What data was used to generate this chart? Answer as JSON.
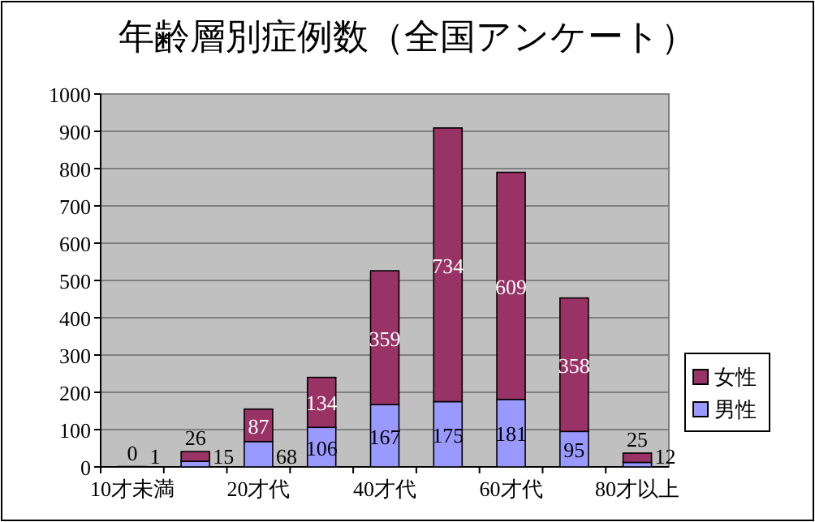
{
  "chart_data": {
    "type": "bar",
    "title": "年齢層別症例数（全国アンケート）",
    "categories": [
      "10才未満",
      null,
      "20才代",
      null,
      "40才代",
      null,
      "60才代",
      null,
      "80才以上"
    ],
    "stacked": true,
    "data_labels": true,
    "legend": "right",
    "grid": "y",
    "ylim": [
      0,
      1000
    ],
    "yticks": [
      0,
      100,
      200,
      300,
      400,
      500,
      600,
      700,
      800,
      900,
      1000
    ],
    "series": [
      {
        "name": "男性",
        "color": "#9999ff",
        "values": [
          1,
          15,
          68,
          106,
          167,
          175,
          181,
          95,
          12
        ]
      },
      {
        "name": "女性",
        "color": "#993366",
        "values": [
          0,
          26,
          87,
          134,
          359,
          734,
          609,
          358,
          25
        ]
      }
    ]
  }
}
